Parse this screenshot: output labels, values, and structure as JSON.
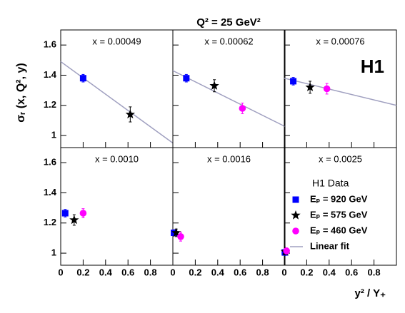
{
  "title": "Q² = 25 GeV²",
  "xlabel": "y² / Y₊",
  "ylabel": "σᵣ (x, Q², y)",
  "logo": "H1",
  "legend_title": "H1 Data",
  "fit_name": "Linear fit",
  "chart_data": [
    {
      "type": "scatter",
      "annotation": "x =  0.00049",
      "xlim": [
        0,
        1
      ],
      "ylim": [
        0.92,
        1.7
      ],
      "xticks": [
        0,
        0.2,
        0.4,
        0.6,
        0.8
      ],
      "yticks": [
        1,
        1.2,
        1.4,
        1.6
      ],
      "series": [
        {
          "name": "Eₚ = 920 GeV",
          "color": "#0000ff",
          "marker": "square",
          "x": [
            0.2
          ],
          "values": [
            1.38
          ],
          "errors": [
            0.025
          ]
        },
        {
          "name": "Eₚ = 575 GeV",
          "color": "#000000",
          "marker": "star",
          "x": [
            0.62
          ],
          "values": [
            1.14
          ],
          "errors": [
            0.05
          ]
        }
      ],
      "fit": {
        "color": "#a0a0c0",
        "x": [
          0,
          1
        ],
        "values": [
          1.49,
          0.95
        ]
      }
    },
    {
      "type": "scatter",
      "annotation": "x =  0.00062",
      "xlim": [
        0,
        1
      ],
      "ylim": [
        0.92,
        1.7
      ],
      "xticks": [
        0,
        0.2,
        0.4,
        0.6,
        0.8
      ],
      "yticks": [
        1,
        1.2,
        1.4,
        1.6
      ],
      "series": [
        {
          "name": "Eₚ = 920 GeV",
          "color": "#0000ff",
          "marker": "square",
          "x": [
            0.12
          ],
          "values": [
            1.38
          ],
          "errors": [
            0.025
          ]
        },
        {
          "name": "Eₚ = 575 GeV",
          "color": "#000000",
          "marker": "star",
          "x": [
            0.37
          ],
          "values": [
            1.33
          ],
          "errors": [
            0.04
          ]
        },
        {
          "name": "Eₚ = 460 GeV",
          "color": "#ff00ff",
          "marker": "circle",
          "x": [
            0.62
          ],
          "values": [
            1.18
          ],
          "errors": [
            0.035
          ]
        }
      ],
      "fit": {
        "color": "#a0a0c0",
        "x": [
          0,
          1
        ],
        "values": [
          1.43,
          1.06
        ]
      }
    },
    {
      "type": "scatter",
      "annotation": "x =  0.00076",
      "xlim": [
        0,
        1
      ],
      "ylim": [
        0.92,
        1.7
      ],
      "xticks": [
        0,
        0.2,
        0.4,
        0.6,
        0.8
      ],
      "yticks": [
        1,
        1.2,
        1.4,
        1.6
      ],
      "series": [
        {
          "name": "Eₚ = 920 GeV",
          "color": "#0000ff",
          "marker": "square",
          "x": [
            0.08
          ],
          "values": [
            1.36
          ],
          "errors": [
            0.025
          ]
        },
        {
          "name": "Eₚ = 575 GeV",
          "color": "#000000",
          "marker": "star",
          "x": [
            0.23
          ],
          "values": [
            1.32
          ],
          "errors": [
            0.04
          ]
        },
        {
          "name": "Eₚ = 460 GeV",
          "color": "#ff00ff",
          "marker": "circle",
          "x": [
            0.38
          ],
          "values": [
            1.31
          ],
          "errors": [
            0.035
          ]
        }
      ],
      "fit": {
        "color": "#a0a0c0",
        "x": [
          0,
          1
        ],
        "values": [
          1.38,
          1.2
        ]
      }
    },
    {
      "type": "scatter",
      "annotation": "x =  0.0010",
      "xlim": [
        0,
        1
      ],
      "ylim": [
        0.92,
        1.7
      ],
      "xticks": [
        0,
        0.2,
        0.4,
        0.6,
        0.8
      ],
      "yticks": [
        1,
        1.2,
        1.4,
        1.6
      ],
      "series": [
        {
          "name": "Eₚ = 920 GeV",
          "color": "#0000ff",
          "marker": "square",
          "x": [
            0.04
          ],
          "values": [
            1.265
          ],
          "errors": [
            0.025
          ]
        },
        {
          "name": "Eₚ = 575 GeV",
          "color": "#000000",
          "marker": "star",
          "x": [
            0.12
          ],
          "values": [
            1.22
          ],
          "errors": [
            0.035
          ]
        },
        {
          "name": "Eₚ = 460 GeV",
          "color": "#ff00ff",
          "marker": "circle",
          "x": [
            0.2
          ],
          "values": [
            1.265
          ],
          "errors": [
            0.03
          ]
        }
      ]
    },
    {
      "type": "scatter",
      "annotation": "x =  0.0016",
      "xlim": [
        0,
        1
      ],
      "ylim": [
        0.92,
        1.7
      ],
      "xticks": [
        0,
        0.2,
        0.4,
        0.6,
        0.8
      ],
      "yticks": [
        1,
        1.2,
        1.4,
        1.6
      ],
      "series": [
        {
          "name": "Eₚ = 920 GeV",
          "color": "#0000ff",
          "marker": "square",
          "x": [
            0.01
          ],
          "values": [
            1.135
          ],
          "errors": [
            0.02
          ]
        },
        {
          "name": "Eₚ = 575 GeV",
          "color": "#000000",
          "marker": "star",
          "x": [
            0.03
          ],
          "values": [
            1.135
          ],
          "errors": [
            0.025
          ]
        },
        {
          "name": "Eₚ = 460 GeV",
          "color": "#ff00ff",
          "marker": "circle",
          "x": [
            0.07
          ],
          "values": [
            1.11
          ],
          "errors": [
            0.03
          ]
        }
      ]
    },
    {
      "type": "scatter",
      "annotation": "x =  0.0025",
      "xlim": [
        0,
        1
      ],
      "ylim": [
        0.92,
        1.7
      ],
      "xticks": [
        0,
        0.2,
        0.4,
        0.6,
        0.8
      ],
      "yticks": [
        1,
        1.2,
        1.4,
        1.6
      ],
      "series": [
        {
          "name": "Eₚ = 920 GeV",
          "color": "#0000ff",
          "marker": "square",
          "x": [
            0.005
          ],
          "values": [
            1.005
          ],
          "errors": [
            0.02
          ]
        },
        {
          "name": "Eₚ = 575 GeV",
          "color": "#000000",
          "marker": "star",
          "x": [
            0.01
          ],
          "values": [
            1.01
          ],
          "errors": [
            0.02
          ]
        },
        {
          "name": "Eₚ = 460 GeV",
          "color": "#ff00ff",
          "marker": "circle",
          "x": [
            0.02
          ],
          "values": [
            1.015
          ],
          "errors": [
            0.02
          ]
        }
      ]
    }
  ]
}
